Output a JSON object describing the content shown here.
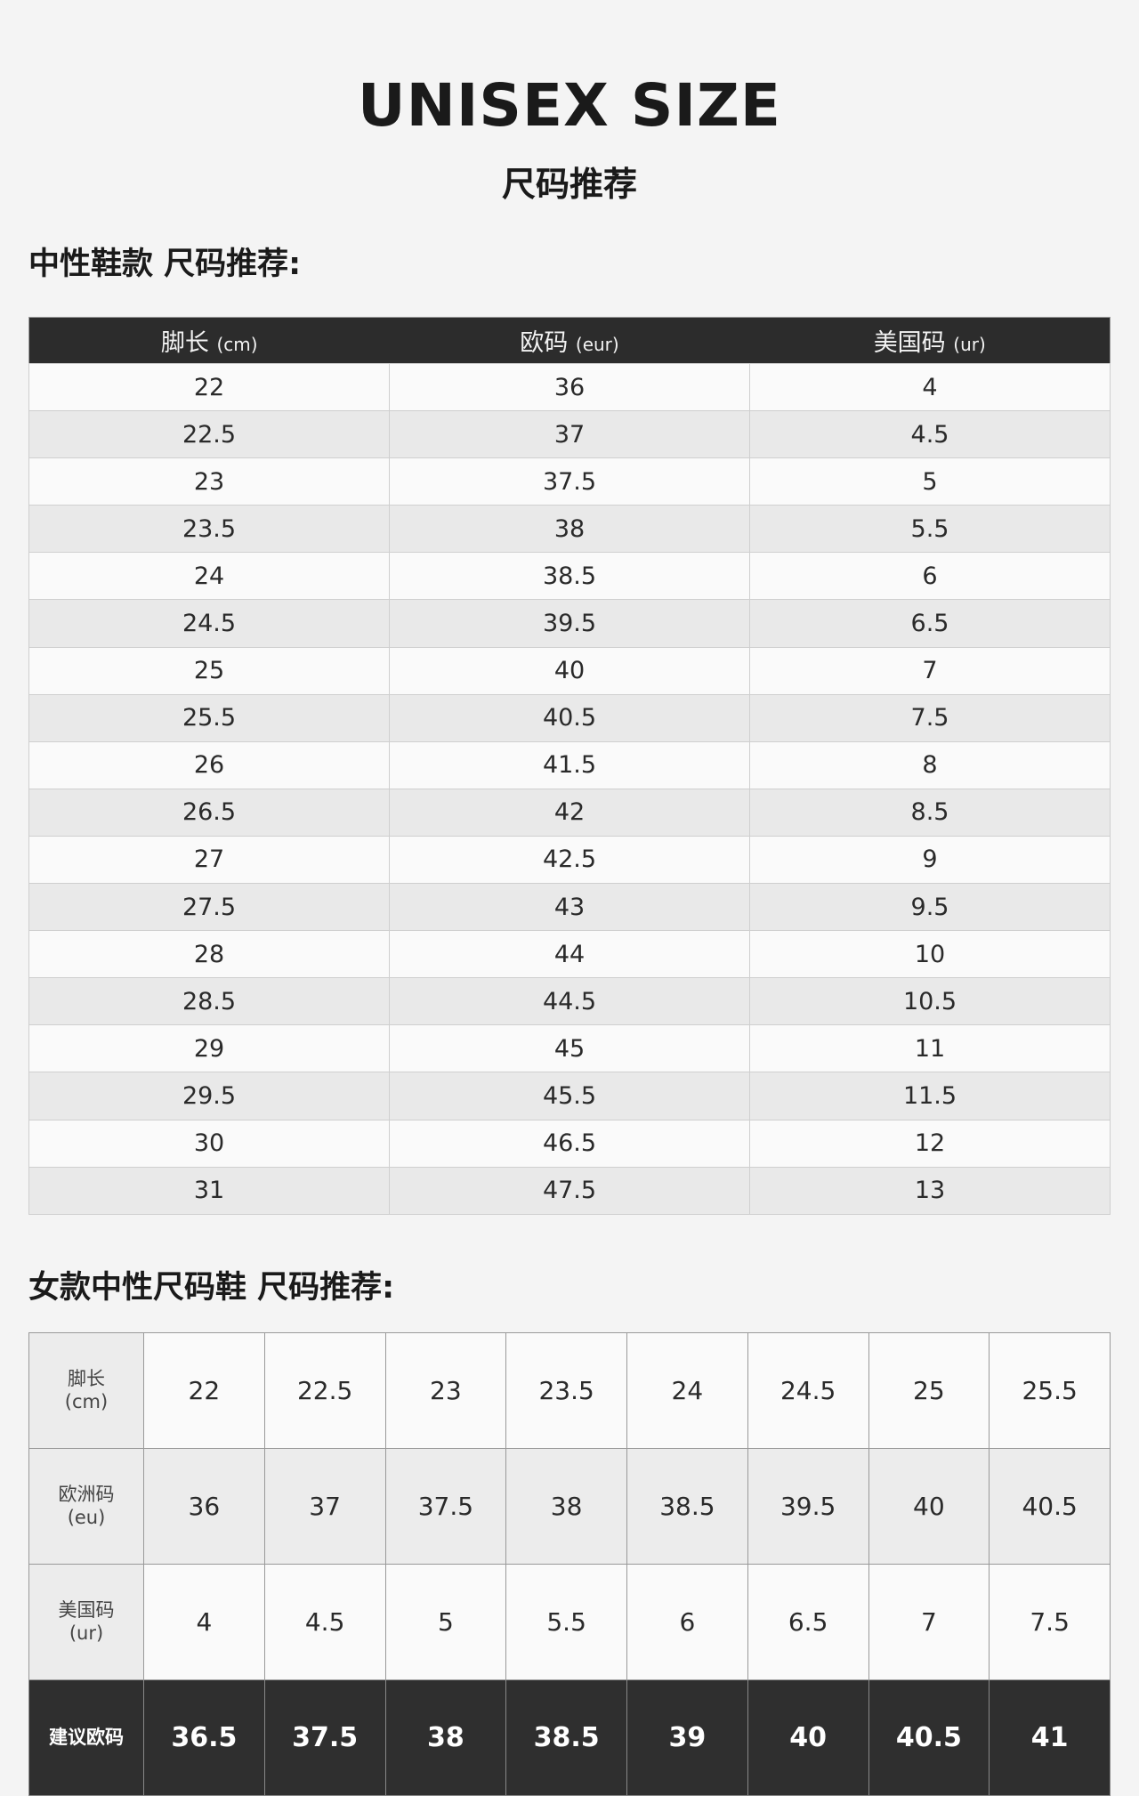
{
  "title": "UNISEX SIZE",
  "subtitle": "尺码推荐",
  "section1": {
    "heading": "中性鞋款 尺码推荐:",
    "headers": [
      {
        "main": "脚长",
        "unit": "(cm)"
      },
      {
        "main": "欧码",
        "unit": "(eur)"
      },
      {
        "main": "美国码",
        "unit": "(ur)"
      }
    ],
    "rows": [
      [
        "22",
        "36",
        "4"
      ],
      [
        "22.5",
        "37",
        "4.5"
      ],
      [
        "23",
        "37.5",
        "5"
      ],
      [
        "23.5",
        "38",
        "5.5"
      ],
      [
        "24",
        "38.5",
        "6"
      ],
      [
        "24.5",
        "39.5",
        "6.5"
      ],
      [
        "25",
        "40",
        "7"
      ],
      [
        "25.5",
        "40.5",
        "7.5"
      ],
      [
        "26",
        "41.5",
        "8"
      ],
      [
        "26.5",
        "42",
        "8.5"
      ],
      [
        "27",
        "42.5",
        "9"
      ],
      [
        "27.5",
        "43",
        "9.5"
      ],
      [
        "28",
        "44",
        "10"
      ],
      [
        "28.5",
        "44.5",
        "10.5"
      ],
      [
        "29",
        "45",
        "11"
      ],
      [
        "29.5",
        "45.5",
        "11.5"
      ],
      [
        "30",
        "46.5",
        "12"
      ],
      [
        "31",
        "47.5",
        "13"
      ]
    ]
  },
  "section2": {
    "heading": "女款中性尺码鞋 尺码推荐:",
    "rows": [
      {
        "label": "脚长",
        "unit": "(cm)",
        "values": [
          "22",
          "22.5",
          "23",
          "23.5",
          "24",
          "24.5",
          "25",
          "25.5"
        ]
      },
      {
        "label": "欧洲码",
        "unit": "(eu)",
        "values": [
          "36",
          "37",
          "37.5",
          "38",
          "38.5",
          "39.5",
          "40",
          "40.5"
        ]
      },
      {
        "label": "美国码",
        "unit": "(ur)",
        "values": [
          "4",
          "4.5",
          "5",
          "5.5",
          "6",
          "6.5",
          "7",
          "7.5"
        ]
      },
      {
        "label": "建议欧码",
        "unit": "",
        "values": [
          "36.5",
          "37.5",
          "38",
          "38.5",
          "39",
          "40",
          "40.5",
          "41"
        ]
      }
    ]
  }
}
